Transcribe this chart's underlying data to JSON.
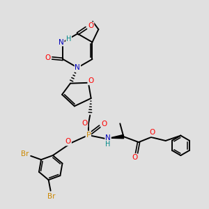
{
  "background_color": "#e0e0e0",
  "atom_colors": {
    "O": "#ff0000",
    "N": "#0000bb",
    "P": "#cc8800",
    "Br": "#cc8800",
    "C": "#000000",
    "H": "#008888"
  },
  "figsize": [
    3.0,
    3.0
  ],
  "dpi": 100
}
